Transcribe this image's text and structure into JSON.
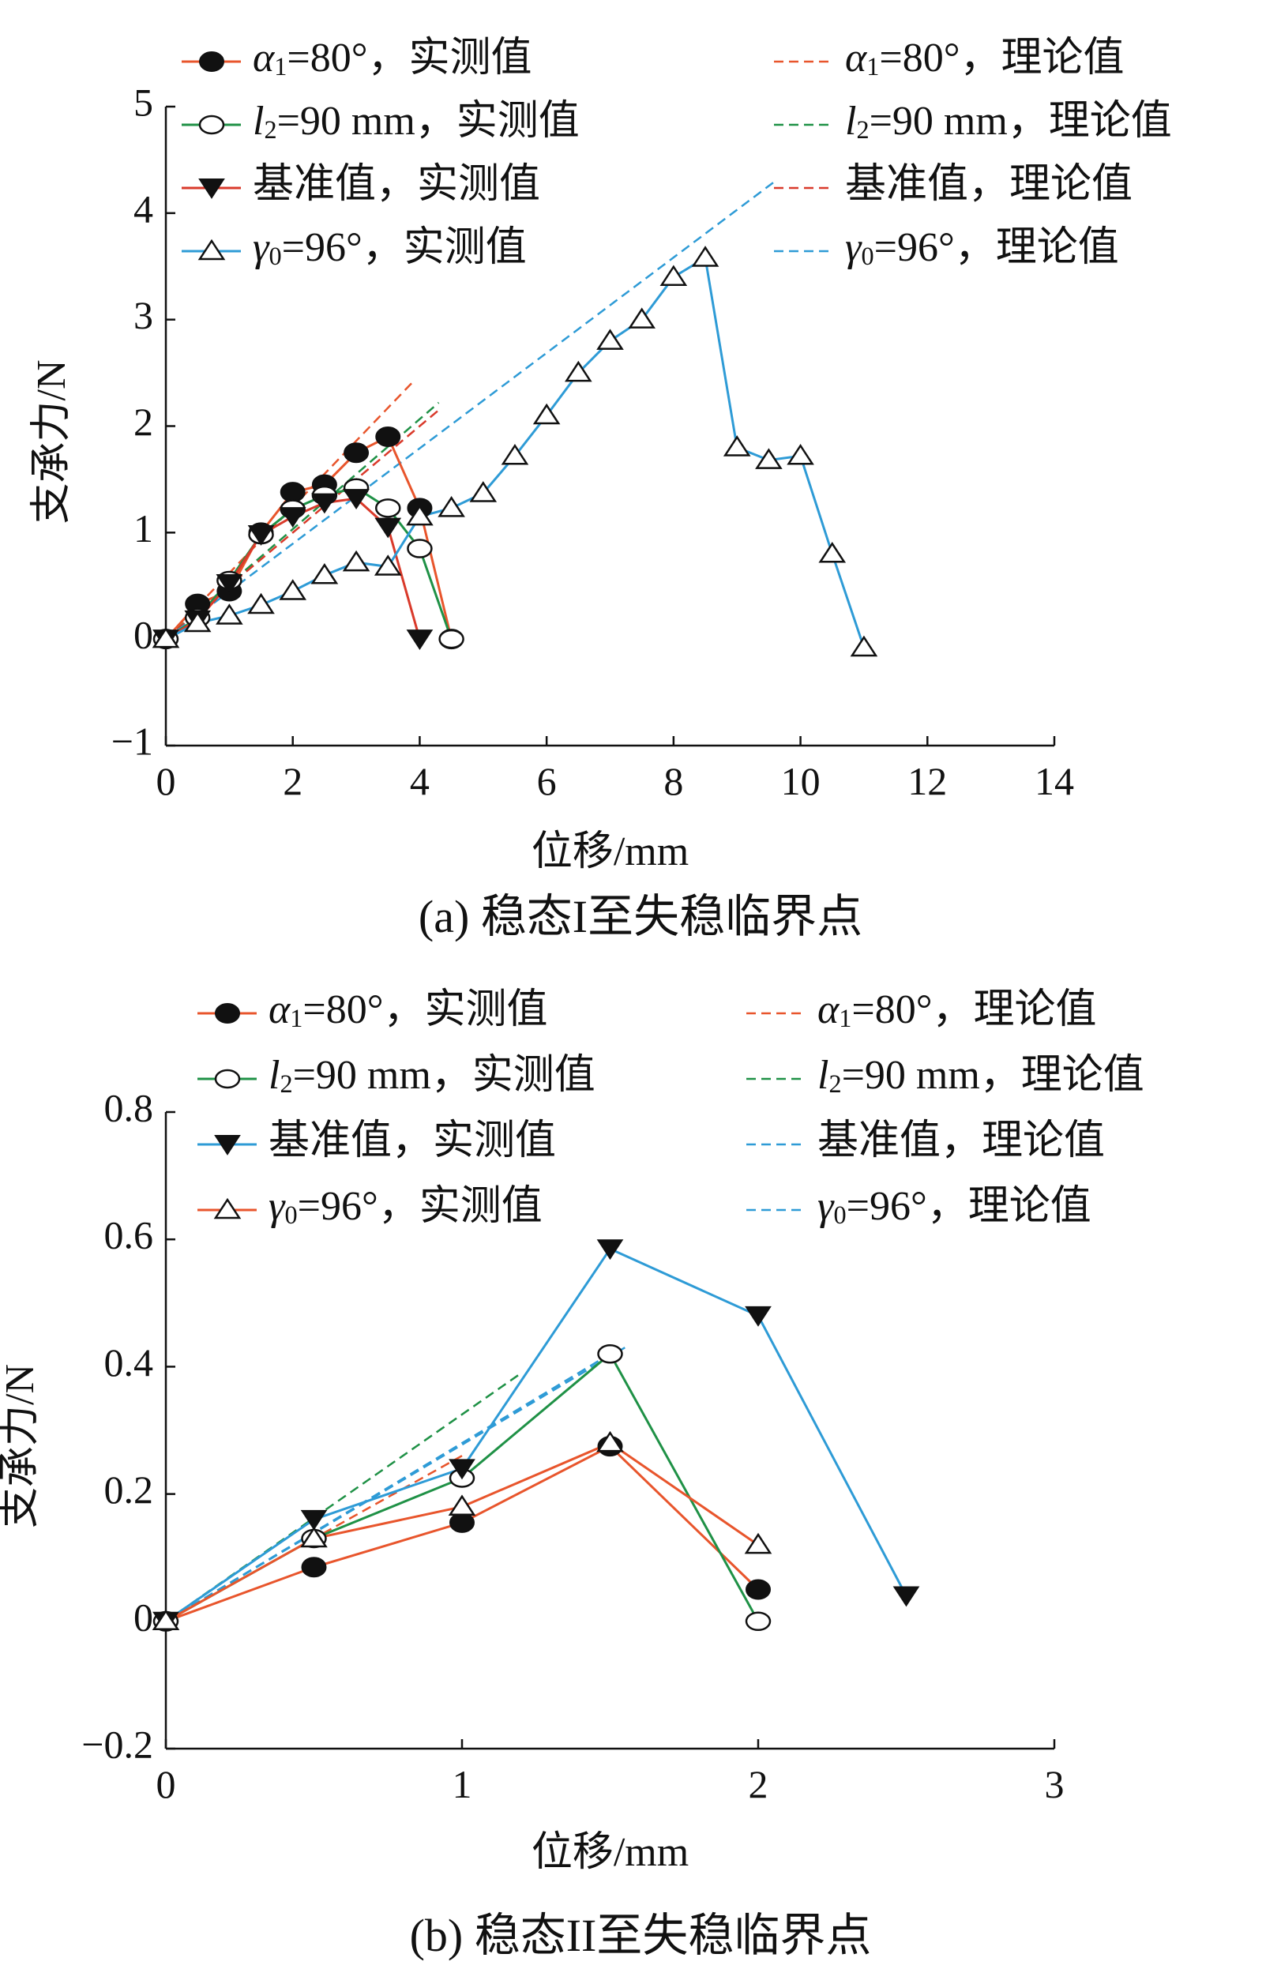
{
  "chart_data": [
    {
      "type": "line",
      "caption": "(a)  稳态I至失稳临界点",
      "xlabel": "位移/mm",
      "ylabel": "支承力/N",
      "xlim": [
        0,
        14
      ],
      "ylim": [
        -1,
        5
      ],
      "xticks": [
        0,
        2,
        4,
        6,
        8,
        10,
        12,
        14
      ],
      "yticks": [
        -1,
        0,
        1,
        2,
        3,
        4,
        5
      ],
      "xtick_labels": [
        "0",
        "2",
        "4",
        "6",
        "8",
        "10",
        "12",
        "14"
      ],
      "ytick_labels": [
        "−1",
        "0",
        "1",
        "2",
        "3",
        "4",
        "5"
      ],
      "legend": {
        "measured": [
          {
            "sym": "α",
            "sub": "1",
            "rest": "=80°，实测值"
          },
          {
            "sym": "l",
            "sub": "2",
            "rest": "=90 mm，实测值"
          },
          {
            "sym": "",
            "sub": "",
            "rest": "基准值，实测值"
          },
          {
            "sym": "γ",
            "sub": "0",
            "rest": "=96°，实测值"
          }
        ],
        "theory": [
          {
            "sym": "α",
            "sub": "1",
            "rest": "=80°，理论值"
          },
          {
            "sym": "l",
            "sub": "2",
            "rest": "=90 mm，理论值"
          },
          {
            "sym": "",
            "sub": "",
            "rest": "基准值，理论值"
          },
          {
            "sym": "γ",
            "sub": "0",
            "rest": "=96°，理论值"
          }
        ]
      },
      "series": [
        {
          "name": "α1=80°，实测值",
          "color": "#e8552c",
          "marker": "filled-circle",
          "x": [
            0,
            0.5,
            1,
            1.5,
            2,
            2.5,
            3,
            3.5,
            4,
            4.5
          ],
          "y": [
            0,
            0.33,
            0.45,
            1.0,
            1.38,
            1.45,
            1.75,
            1.9,
            1.23,
            0
          ]
        },
        {
          "name": "l2=90 mm，实测值",
          "color": "#1f9146",
          "marker": "open-circle",
          "x": [
            0,
            0.5,
            1,
            1.5,
            2,
            2.5,
            3,
            3.5,
            4,
            4.5
          ],
          "y": [
            0,
            0.2,
            0.55,
            0.98,
            1.22,
            1.35,
            1.42,
            1.23,
            0.85,
            0
          ]
        },
        {
          "name": "基准值，实测值",
          "color": "#d93a2b",
          "marker": "filled-triangle-down",
          "x": [
            0,
            0.5,
            1,
            1.5,
            2,
            2.5,
            3,
            3.5,
            4
          ],
          "y": [
            0,
            0.18,
            0.52,
            0.98,
            1.15,
            1.28,
            1.32,
            1.05,
            0
          ]
        },
        {
          "name": "γ0=96°，实测值",
          "color": "#2e9bd6",
          "marker": "open-triangle-up",
          "x": [
            0,
            0.5,
            1,
            1.5,
            2,
            2.5,
            3,
            3.5,
            4,
            4.5,
            5,
            5.5,
            6,
            6.5,
            7,
            7.5,
            8,
            8.5,
            9,
            9.5,
            10,
            10.5,
            11
          ],
          "y": [
            0,
            0.15,
            0.22,
            0.32,
            0.45,
            0.6,
            0.72,
            0.68,
            1.15,
            1.23,
            1.37,
            1.72,
            2.1,
            2.5,
            2.8,
            3.0,
            3.4,
            3.58,
            1.8,
            1.68,
            1.72,
            0.8,
            -0.08
          ]
        },
        {
          "name": "α1=80°，理论值",
          "color": "#e8552c",
          "dashed": true,
          "x": [
            0,
            3.9
          ],
          "y": [
            0,
            2.42
          ]
        },
        {
          "name": "l2=90 mm，理论值",
          "color": "#1f9146",
          "dashed": true,
          "x": [
            0,
            4.3
          ],
          "y": [
            0,
            2.22
          ]
        },
        {
          "name": "基准值，理论值",
          "color": "#d93a2b",
          "dashed": true,
          "x": [
            0,
            4.3
          ],
          "y": [
            0,
            2.15
          ]
        },
        {
          "name": "γ0=96°，理论值",
          "color": "#2e9bd6",
          "dashed": true,
          "x": [
            0,
            9.6
          ],
          "y": [
            0,
            4.3
          ]
        }
      ]
    },
    {
      "type": "line",
      "caption": "(b)  稳态II至失稳临界点",
      "xlabel": "位移/mm",
      "ylabel": "支承力/N",
      "xlim": [
        0,
        3
      ],
      "ylim": [
        -0.2,
        0.8
      ],
      "xticks": [
        0,
        1,
        2,
        3
      ],
      "yticks": [
        -0.2,
        0,
        0.2,
        0.4,
        0.6,
        0.8
      ],
      "xtick_labels": [
        "0",
        "1",
        "2",
        "3"
      ],
      "ytick_labels": [
        "−0.2",
        "0",
        "0.2",
        "0.4",
        "0.6",
        "0.8"
      ],
      "legend": {
        "measured": [
          {
            "sym": "α",
            "sub": "1",
            "rest": "=80°，实测值"
          },
          {
            "sym": "l",
            "sub": "2",
            "rest": "=90 mm，实测值"
          },
          {
            "sym": "",
            "sub": "",
            "rest": "基准值，实测值"
          },
          {
            "sym": "γ",
            "sub": "0",
            "rest": "=96°，实测值"
          }
        ],
        "theory": [
          {
            "sym": "α",
            "sub": "1",
            "rest": "=80°，理论值"
          },
          {
            "sym": "l",
            "sub": "2",
            "rest": "=90 mm，理论值"
          },
          {
            "sym": "",
            "sub": "",
            "rest": "基准值，理论值"
          },
          {
            "sym": "γ",
            "sub": "0",
            "rest": "=96°，理论值"
          }
        ]
      },
      "series": [
        {
          "name": "α1=80°，实测值",
          "color": "#e8552c",
          "marker": "filled-circle",
          "x": [
            0,
            0.5,
            1,
            1.5,
            2
          ],
          "y": [
            0,
            0.085,
            0.155,
            0.275,
            0.05
          ]
        },
        {
          "name": "l2=90 mm，实测值",
          "color": "#1f9146",
          "marker": "open-circle",
          "x": [
            0,
            0.5,
            1,
            1.5,
            2
          ],
          "y": [
            0,
            0.13,
            0.225,
            0.42,
            0
          ]
        },
        {
          "name": "基准值，实测值",
          "color": "#2e9bd6",
          "marker": "filled-triangle-down",
          "x": [
            0,
            0.5,
            1,
            1.5,
            2,
            2.5
          ],
          "y": [
            0,
            0.16,
            0.24,
            0.585,
            0.48,
            0.04
          ]
        },
        {
          "name": "γ0=96°，实测值",
          "color": "#e8552c",
          "marker": "open-triangle-up",
          "x": [
            0,
            0.5,
            1,
            1.5,
            2
          ],
          "y": [
            0,
            0.13,
            0.18,
            0.28,
            0.12
          ]
        },
        {
          "name": "α1=80°，理论值",
          "color": "#e8552c",
          "dashed": true,
          "x": [
            0,
            1.0
          ],
          "y": [
            0,
            0.26
          ]
        },
        {
          "name": "l2=90 mm，理论值",
          "color": "#1f9146",
          "dashed": true,
          "x": [
            0,
            1.2
          ],
          "y": [
            0,
            0.39
          ]
        },
        {
          "name": "基准值，理论值",
          "color": "#2e9bd6",
          "dashed": true,
          "x": [
            0,
            1.55
          ],
          "y": [
            0,
            0.43
          ]
        },
        {
          "name": "γ0=96°，理论值",
          "color": "#2e9bd6",
          "dashed": true,
          "x": [
            0,
            1.5
          ],
          "y": [
            0,
            0.42
          ]
        }
      ]
    }
  ]
}
